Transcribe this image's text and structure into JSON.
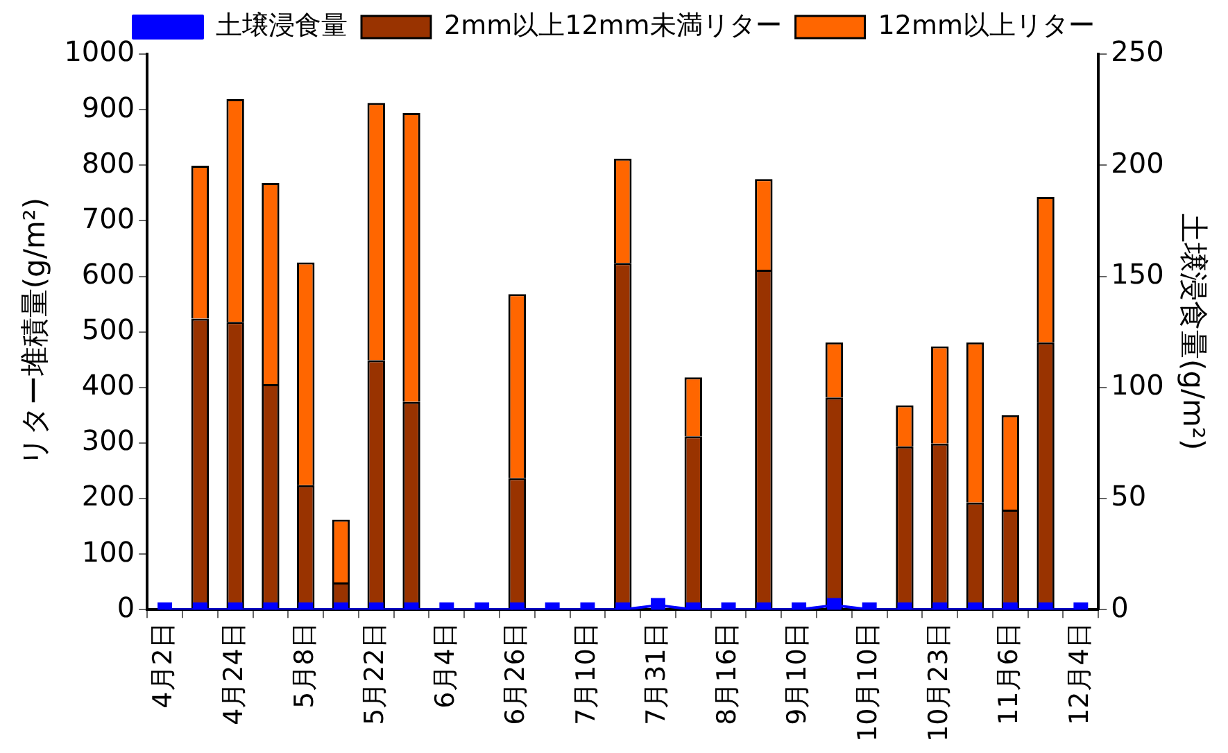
{
  "chart_data": {
    "type": "bar",
    "stacked": true,
    "grid": false,
    "legend": "top",
    "xlabel": null,
    "ylabel": "リター堆積量(g/m²)",
    "y2label": "土壌浸食量(g/m²)",
    "categories": [
      "4月2日",
      null,
      "4月24日",
      null,
      "5月8日",
      null,
      "5月22日",
      null,
      "6月4日",
      null,
      "6月26日",
      null,
      "7月10日",
      null,
      "7月31日",
      null,
      "8月16日",
      null,
      "9月10日",
      null,
      "10月10日",
      null,
      "10月23日",
      null,
      "11月6日",
      null,
      "12月4日"
    ],
    "ylim": [
      0,
      1000
    ],
    "yticks": [
      0,
      100,
      200,
      300,
      400,
      500,
      600,
      700,
      800,
      900,
      1000
    ],
    "y2lim": [
      0,
      250
    ],
    "y2ticks": [
      0,
      50,
      100,
      150,
      200,
      250
    ],
    "marker": "square",
    "series": [
      {
        "name": "2mm以上12mm未満リター",
        "color": "#993300",
        "values": [
          null,
          524,
          518,
          406,
          224,
          49,
          449,
          374,
          null,
          null,
          237,
          null,
          null,
          624,
          null,
          312,
          null,
          612,
          null,
          382,
          null,
          294,
          299,
          193,
          180,
          481,
          null
        ]
      },
      {
        "name": "12mm以上リター",
        "color": "#ff6600",
        "values": [
          null,
          275,
          401,
          362,
          401,
          113,
          463,
          520,
          null,
          null,
          331,
          null,
          null,
          188,
          null,
          106,
          null,
          163,
          null,
          99,
          null,
          74,
          175,
          288,
          170,
          262,
          null
        ]
      },
      {
        "name": "土壌浸食量",
        "type": "line",
        "axis": "y2",
        "color": "#0000ff",
        "values": [
          0,
          0,
          0,
          0,
          0,
          0,
          0,
          0,
          0,
          0,
          0,
          0,
          0,
          0,
          2,
          0,
          0,
          0,
          0,
          2,
          0,
          0,
          0,
          0,
          0,
          0,
          0
        ]
      }
    ]
  }
}
